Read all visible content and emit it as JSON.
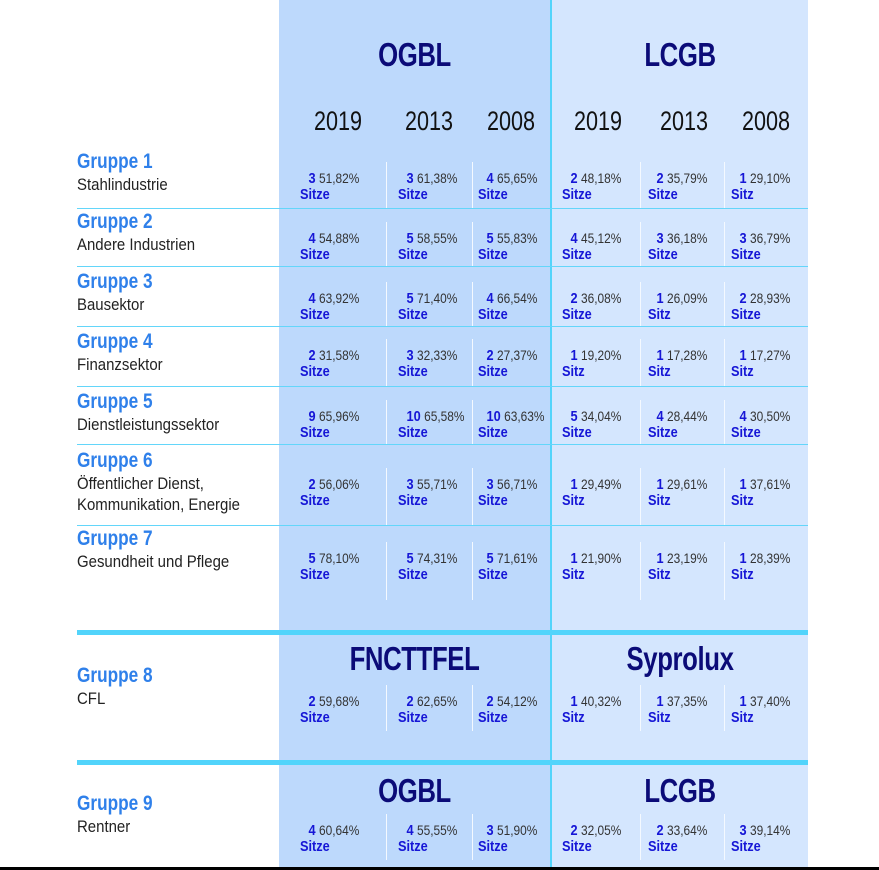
{
  "header": {
    "party_left": "OGBL",
    "party_right": "LCGB",
    "years": [
      "2019",
      "2013",
      "2008",
      "2019",
      "2013",
      "2008"
    ]
  },
  "groups": [
    {
      "name": "Gruppe 1",
      "sub": [
        "Stahlindustrie"
      ],
      "cells": [
        [
          "3",
          "51,82%",
          "Sitze"
        ],
        [
          "3",
          "61,38%",
          "Sitze"
        ],
        [
          "4",
          "65,65%",
          "Sitze"
        ],
        [
          "2",
          "48,18%",
          "Sitze"
        ],
        [
          "2",
          "35,79%",
          "Sitze"
        ],
        [
          "1",
          "29,10%",
          "Sitz"
        ]
      ]
    },
    {
      "name": "Gruppe 2",
      "sub": [
        "Andere Industrien"
      ],
      "cells": [
        [
          "4",
          "54,88%",
          "Sitze"
        ],
        [
          "5",
          "58,55%",
          "Sitze"
        ],
        [
          "5",
          "55,83%",
          "Sitze"
        ],
        [
          "4",
          "45,12%",
          "Sitze"
        ],
        [
          "3",
          "36,18%",
          "Sitze"
        ],
        [
          "3",
          "36,79%",
          "Sitze"
        ]
      ]
    },
    {
      "name": "Gruppe 3",
      "sub": [
        "Bausektor"
      ],
      "cells": [
        [
          "4",
          "63,92%",
          "Sitze"
        ],
        [
          "5",
          "71,40%",
          "Sitze"
        ],
        [
          "4",
          "66,54%",
          "Sitze"
        ],
        [
          "2",
          "36,08%",
          "Sitze"
        ],
        [
          "1",
          "26,09%",
          "Sitz"
        ],
        [
          "2",
          "28,93%",
          "Sitze"
        ]
      ]
    },
    {
      "name": "Gruppe 4",
      "sub": [
        "Finanzsektor"
      ],
      "cells": [
        [
          "2",
          "31,58%",
          "Sitze"
        ],
        [
          "3",
          "32,33%",
          "Sitze"
        ],
        [
          "2",
          "27,37%",
          "Sitze"
        ],
        [
          "1",
          "19,20%",
          "Sitz"
        ],
        [
          "1",
          "17,28%",
          "Sitz"
        ],
        [
          "1",
          "17,27%",
          "Sitz"
        ]
      ]
    },
    {
      "name": "Gruppe 5",
      "sub": [
        "Dienstleistungssektor"
      ],
      "cells": [
        [
          "9",
          "65,96%",
          "Sitze"
        ],
        [
          "10",
          "65,58%",
          "Sitze"
        ],
        [
          "10",
          "63,63%",
          "Sitze"
        ],
        [
          "5",
          "34,04%",
          "Sitze"
        ],
        [
          "4",
          "28,44%",
          "Sitze"
        ],
        [
          "4",
          "30,50%",
          "Sitze"
        ]
      ]
    },
    {
      "name": "Gruppe 6",
      "sub": [
        "Öffentlicher Dienst,",
        "Kommunikation, Energie"
      ],
      "cells": [
        [
          "2",
          "56,06%",
          "Sitze"
        ],
        [
          "3",
          "55,71%",
          "Sitze"
        ],
        [
          "3",
          "56,71%",
          "Sitze"
        ],
        [
          "1",
          "29,49%",
          "Sitz"
        ],
        [
          "1",
          "29,61%",
          "Sitz"
        ],
        [
          "1",
          "37,61%",
          "Sitz"
        ]
      ]
    },
    {
      "name": "Gruppe 7",
      "sub": [
        "Gesundheit und Pflege"
      ],
      "cells": [
        [
          "5",
          "78,10%",
          "Sitze"
        ],
        [
          "5",
          "74,31%",
          "Sitze"
        ],
        [
          "5",
          "71,61%",
          "Sitze"
        ],
        [
          "1",
          "21,90%",
          "Sitz"
        ],
        [
          "1",
          "23,19%",
          "Sitz"
        ],
        [
          "1",
          "28,39%",
          "Sitz"
        ]
      ]
    },
    {
      "name": "Gruppe 8",
      "sub": [
        "CFL"
      ],
      "party_left": "FNCTTFEL",
      "party_right": "Syprolux",
      "cells": [
        [
          "2",
          "59,68%",
          "Sitze"
        ],
        [
          "2",
          "62,65%",
          "Sitze"
        ],
        [
          "2",
          "54,12%",
          "Sitze"
        ],
        [
          "1",
          "40,32%",
          "Sitz"
        ],
        [
          "1",
          "37,35%",
          "Sitz"
        ],
        [
          "1",
          "37,40%",
          "Sitz"
        ]
      ]
    },
    {
      "name": "Gruppe 9",
      "sub": [
        "Rentner"
      ],
      "party_left": "OGBL",
      "party_right": "LCGB",
      "cells": [
        [
          "4",
          "60,64%",
          "Sitze"
        ],
        [
          "4",
          "55,55%",
          "Sitze"
        ],
        [
          "3",
          "51,90%",
          "Sitze"
        ],
        [
          "2",
          "32,05%",
          "Sitze"
        ],
        [
          "2",
          "33,64%",
          "Sitze"
        ],
        [
          "3",
          "39,14%",
          "Sitze"
        ]
      ]
    }
  ],
  "colors": {
    "left_panel": "#bdd9fc",
    "right_panel": "#d4e6fe",
    "divider": "#52d4fb",
    "party": "#0b0b78",
    "seats": "#1616d6",
    "group": "#2f80ea"
  }
}
